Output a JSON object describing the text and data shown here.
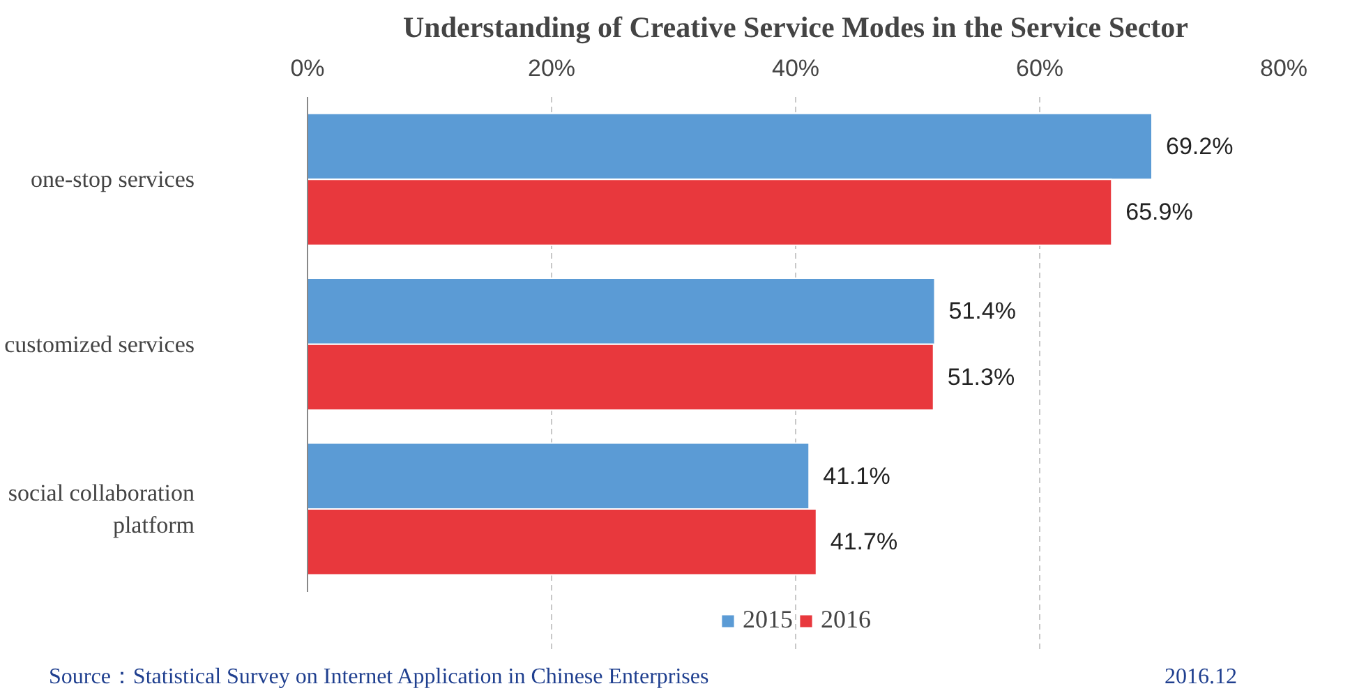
{
  "chart_data": {
    "type": "bar",
    "orientation": "horizontal",
    "title": "Understanding of Creative Service Modes in the Service Sector",
    "categories": [
      "one-stop services",
      "customized services",
      "social collaboration platform"
    ],
    "series": [
      {
        "name": "2015",
        "color": "#5b9bd5",
        "values": [
          69.2,
          51.4,
          41.1
        ],
        "value_labels": [
          "69.2%",
          "51.4%",
          "41.1%"
        ]
      },
      {
        "name": "2016",
        "color": "#e8383d",
        "values": [
          65.9,
          51.3,
          41.7
        ],
        "value_labels": [
          "65.9%",
          "51.3%",
          "41.7%"
        ]
      }
    ],
    "xlim": [
      0,
      80
    ],
    "xticks": [
      {
        "value": 0,
        "label": "0%"
      },
      {
        "value": 20,
        "label": "20%"
      },
      {
        "value": 40,
        "label": "40%"
      },
      {
        "value": 60,
        "label": "60%"
      },
      {
        "value": 80,
        "label": "80%"
      }
    ],
    "grid": "x",
    "legend": "bottom",
    "annotations": [
      "Source：Statistical Survey on Internet Application in Chinese Enterprises",
      "2016.12"
    ]
  }
}
